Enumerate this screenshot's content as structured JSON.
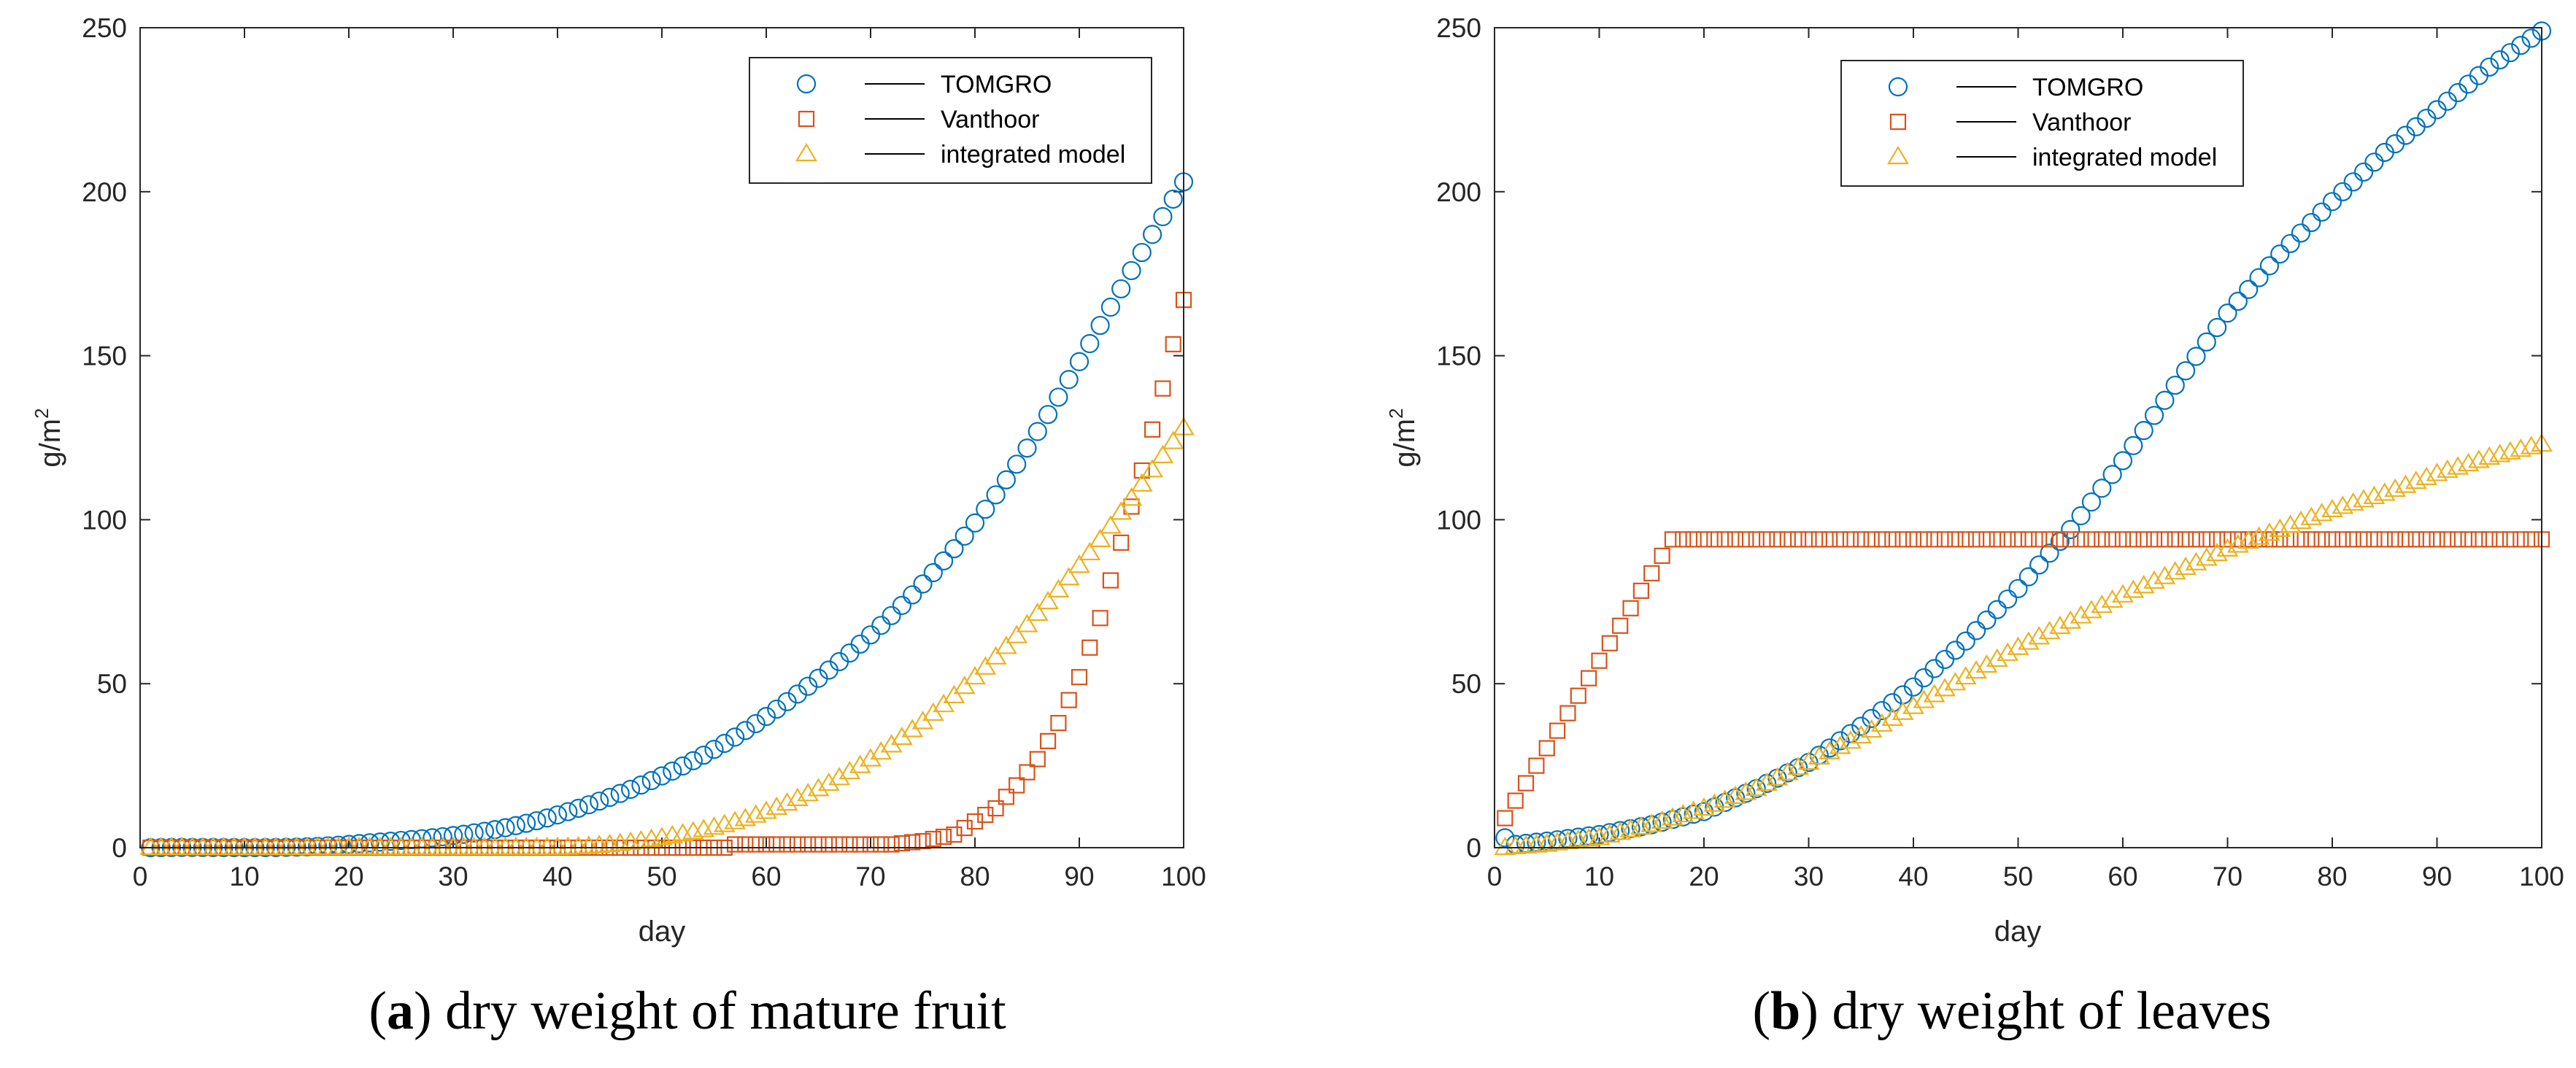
{
  "chart_data": [
    {
      "type": "scatter",
      "panel_letter": "a",
      "caption": "dry weight of mature fruit",
      "xlabel": "day",
      "ylabel": "g/m",
      "ylabel_superscript": "2",
      "xlim": [
        0,
        100
      ],
      "ylim": [
        0,
        250
      ],
      "xticks": [
        0,
        10,
        20,
        30,
        40,
        50,
        60,
        70,
        80,
        90,
        100
      ],
      "yticks": [
        0,
        50,
        100,
        150,
        200,
        250
      ],
      "legend_position": "top-right",
      "series": [
        {
          "name": "TOMGRO",
          "marker": "circle",
          "color": "#0072BD",
          "formula": "poly",
          "points": [
            [
              1,
              0
            ],
            [
              20,
              1
            ],
            [
              40,
              10
            ],
            [
              60,
              40
            ],
            [
              80,
              99
            ],
            [
              100,
              203
            ]
          ]
        },
        {
          "name": "Vanthoor",
          "marker": "square",
          "color": "#D95319",
          "formula": "piecewise",
          "points": [
            [
              1,
              0
            ],
            [
              56,
              0
            ],
            [
              57,
              1
            ],
            [
              72,
              1
            ],
            [
              75,
              2
            ],
            [
              78,
              4
            ],
            [
              80,
              8
            ],
            [
              82,
              12
            ],
            [
              84,
              19
            ],
            [
              86,
              27
            ],
            [
              88,
              38
            ],
            [
              90,
              52
            ],
            [
              92,
              70
            ],
            [
              94,
              93
            ],
            [
              96,
              115
            ],
            [
              98,
              140
            ],
            [
              100,
              167
            ]
          ]
        },
        {
          "name": "integrated model",
          "marker": "triangle",
          "color": "#EDB120",
          "formula": "poly",
          "points": [
            [
              1,
              0
            ],
            [
              40,
              0
            ],
            [
              50,
              3
            ],
            [
              60,
              11
            ],
            [
              70,
              27
            ],
            [
              80,
              52
            ],
            [
              90,
              86
            ],
            [
              100,
              128
            ]
          ]
        }
      ]
    },
    {
      "type": "scatter",
      "panel_letter": "b",
      "caption": "dry weight of leaves",
      "xlabel": "day",
      "ylabel": "g/m",
      "ylabel_superscript": "2",
      "xlim": [
        0,
        100
      ],
      "ylim": [
        0,
        250
      ],
      "xticks": [
        0,
        10,
        20,
        30,
        40,
        50,
        60,
        70,
        80,
        90,
        100
      ],
      "yticks": [
        0,
        50,
        100,
        150,
        200,
        250
      ],
      "legend_position": "top-center",
      "series": [
        {
          "name": "TOMGRO",
          "marker": "circle",
          "color": "#0072BD",
          "formula": "piecewise",
          "points": [
            [
              1,
              3
            ],
            [
              2,
              1
            ],
            [
              5,
              2
            ],
            [
              10,
              4
            ],
            [
              15,
              7
            ],
            [
              20,
              11
            ],
            [
              25,
              18
            ],
            [
              30,
              26
            ],
            [
              35,
              37
            ],
            [
              40,
              49
            ],
            [
              45,
              63
            ],
            [
              50,
              79
            ],
            [
              55,
              97
            ],
            [
              60,
              118
            ],
            [
              65,
              141
            ],
            [
              70,
              163
            ],
            [
              75,
              181
            ],
            [
              80,
              197
            ],
            [
              85,
              212
            ],
            [
              90,
              225
            ],
            [
              95,
              238
            ],
            [
              100,
              249
            ]
          ]
        },
        {
          "name": "Vanthoor",
          "marker": "square",
          "color": "#D95319",
          "formula": "piecewise",
          "points": [
            [
              1,
              9
            ],
            [
              16,
              89
            ],
            [
              17,
              94
            ],
            [
              100,
              94
            ]
          ]
        },
        {
          "name": "integrated model",
          "marker": "triangle",
          "color": "#EDB120",
          "formula": "piecewise",
          "points": [
            [
              1,
              0
            ],
            [
              5,
              1
            ],
            [
              10,
              3
            ],
            [
              15,
              7
            ],
            [
              20,
              12
            ],
            [
              25,
              18
            ],
            [
              30,
              26
            ],
            [
              35,
              34
            ],
            [
              40,
              43
            ],
            [
              45,
              52
            ],
            [
              50,
              61
            ],
            [
              55,
              69
            ],
            [
              60,
              77
            ],
            [
              65,
              84
            ],
            [
              70,
              91
            ],
            [
              75,
              97
            ],
            [
              80,
              103
            ],
            [
              85,
              108
            ],
            [
              90,
              114
            ],
            [
              95,
              119
            ],
            [
              100,
              123
            ]
          ]
        }
      ]
    }
  ]
}
